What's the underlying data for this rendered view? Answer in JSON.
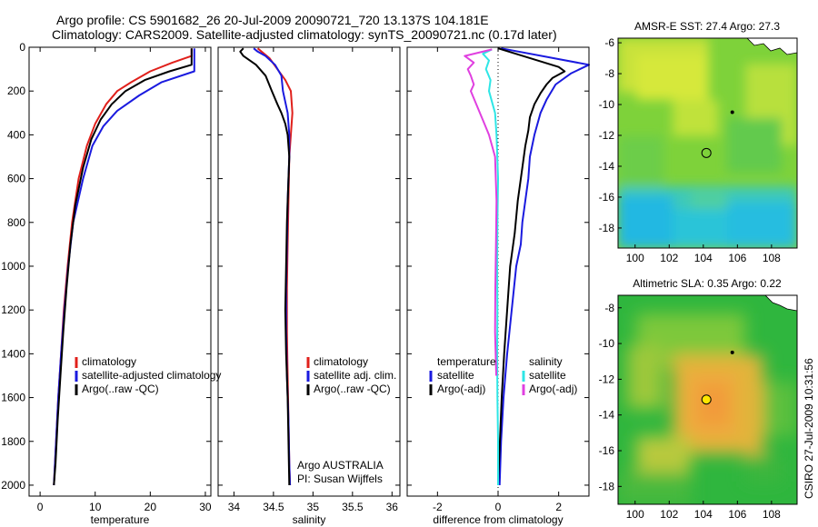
{
  "title": {
    "line1": "Argo profile: CS 5901682_26 20-Jul-2009 20090721_720 13.137S 104.181E",
    "line2": "Climatology: CARS2009. Satellite-adjusted climatology: synTS_20090721.nc (0.17d later)"
  },
  "side_text": "CSIRO 27-Jul-2009 10:31:56",
  "colors": {
    "red": "#e0201b",
    "blue": "#1a1adf",
    "black": "#000000",
    "cyan": "#2ee6e6",
    "magenta": "#e040e0"
  },
  "chart_data": [
    {
      "type": "line",
      "panel": "temperature",
      "xlabel": "temperature",
      "ylabel": "",
      "xlim": [
        -2,
        31
      ],
      "ylim": [
        2050,
        0
      ],
      "x_ticks": [
        0,
        10,
        20,
        30
      ],
      "x_tick_labels": [
        "0",
        "10",
        "20",
        "30"
      ],
      "y_ticks": [
        0,
        200,
        400,
        600,
        800,
        1000,
        1200,
        1400,
        1600,
        1800,
        2000
      ],
      "y_tick_labels": [
        "0",
        "200",
        "400",
        "600",
        "800",
        "1000",
        "1200",
        "1400",
        "1600",
        "1800",
        "2000"
      ],
      "legend": [
        "climatology",
        "satellite-adjusted climatology",
        "Argo(..raw -QC)"
      ],
      "series": [
        {
          "name": "climatology",
          "color": "red",
          "points": [
            [
              27.5,
              5
            ],
            [
              27.5,
              40
            ],
            [
              24,
              70
            ],
            [
              20,
              110
            ],
            [
              16.5,
              160
            ],
            [
              14,
              200
            ],
            [
              12,
              260
            ],
            [
              10,
              350
            ],
            [
              8.5,
              450
            ],
            [
              7,
              600
            ],
            [
              5.8,
              800
            ],
            [
              5,
              1000
            ],
            [
              4.3,
              1200
            ],
            [
              3.8,
              1400
            ],
            [
              3.3,
              1600
            ],
            [
              2.9,
              1800
            ],
            [
              2.5,
              2000
            ]
          ]
        },
        {
          "name": "satellite-adjusted climatology",
          "color": "blue",
          "points": [
            [
              28,
              5
            ],
            [
              28,
              110
            ],
            [
              22,
              160
            ],
            [
              18,
              220
            ],
            [
              14,
              290
            ],
            [
              11.5,
              360
            ],
            [
              9.5,
              450
            ],
            [
              7.8,
              600
            ],
            [
              6,
              800
            ],
            [
              5.1,
              1000
            ],
            [
              4.4,
              1200
            ],
            [
              3.8,
              1400
            ],
            [
              3.3,
              1600
            ],
            [
              2.9,
              1800
            ],
            [
              2.5,
              2000
            ]
          ]
        },
        {
          "name": "Argo(..raw -QC)",
          "color": "black",
          "points": [
            [
              27.5,
              5
            ],
            [
              27.5,
              80
            ],
            [
              23.5,
              110
            ],
            [
              19,
              150
            ],
            [
              15.5,
              200
            ],
            [
              13,
              260
            ],
            [
              11,
              330
            ],
            [
              9.3,
              420
            ],
            [
              7.8,
              550
            ],
            [
              6.4,
              720
            ],
            [
              5.5,
              900
            ],
            [
              4.8,
              1100
            ],
            [
              4.2,
              1300
            ],
            [
              3.7,
              1500
            ],
            [
              3.2,
              1700
            ],
            [
              2.8,
              1900
            ],
            [
              2.5,
              2000
            ]
          ]
        }
      ]
    },
    {
      "type": "line",
      "panel": "salinity",
      "xlabel": "salinity",
      "ylabel": "",
      "xlim": [
        33.8,
        36.1
      ],
      "ylim": [
        2050,
        0
      ],
      "x_ticks": [
        34,
        34.5,
        35,
        35.5,
        36
      ],
      "x_tick_labels": [
        "34",
        "34.5",
        "35",
        "35.5",
        "36"
      ],
      "legend": [
        "climatology",
        "satellite adj. clim.",
        "Argo(..raw -QC)"
      ],
      "annotation": [
        "Argo AUSTRALIA",
        "PI: Susan Wijffels"
      ],
      "series": [
        {
          "name": "climatology",
          "color": "red",
          "points": [
            [
              34.3,
              5
            ],
            [
              34.35,
              20
            ],
            [
              34.45,
              50
            ],
            [
              34.55,
              100
            ],
            [
              34.65,
              150
            ],
            [
              34.72,
              200
            ],
            [
              34.74,
              300
            ],
            [
              34.72,
              400
            ],
            [
              34.7,
              500
            ],
            [
              34.69,
              700
            ],
            [
              34.68,
              900
            ],
            [
              34.67,
              1100
            ],
            [
              34.67,
              1300
            ],
            [
              34.68,
              1500
            ],
            [
              34.69,
              1700
            ],
            [
              34.7,
              1900
            ],
            [
              34.71,
              2000
            ]
          ]
        },
        {
          "name": "satellite adj. clim.",
          "color": "blue",
          "points": [
            [
              34.25,
              5
            ],
            [
              34.3,
              20
            ],
            [
              34.4,
              40
            ],
            [
              34.52,
              80
            ],
            [
              34.6,
              130
            ],
            [
              34.62,
              200
            ],
            [
              34.68,
              300
            ],
            [
              34.7,
              400
            ],
            [
              34.7,
              500
            ],
            [
              34.68,
              700
            ],
            [
              34.67,
              900
            ],
            [
              34.66,
              1100
            ],
            [
              34.66,
              1300
            ],
            [
              34.67,
              1500
            ],
            [
              34.69,
              1700
            ],
            [
              34.7,
              1900
            ],
            [
              34.71,
              2000
            ]
          ]
        },
        {
          "name": "Argo(..raw -QC)",
          "color": "black",
          "points": [
            [
              34.12,
              5
            ],
            [
              34.08,
              20
            ],
            [
              34.12,
              40
            ],
            [
              34.28,
              80
            ],
            [
              34.4,
              130
            ],
            [
              34.48,
              200
            ],
            [
              34.55,
              260
            ],
            [
              34.6,
              300
            ],
            [
              34.65,
              350
            ],
            [
              34.68,
              400
            ],
            [
              34.7,
              500
            ],
            [
              34.69,
              600
            ],
            [
              34.67,
              800
            ],
            [
              34.66,
              1000
            ],
            [
              34.65,
              1200
            ],
            [
              34.66,
              1400
            ],
            [
              34.68,
              1600
            ],
            [
              34.69,
              1800
            ],
            [
              34.7,
              2000
            ]
          ]
        }
      ]
    },
    {
      "type": "line",
      "panel": "difference",
      "xlabel": "difference from climatology",
      "ylabel": "",
      "xlim": [
        -3,
        3
      ],
      "ylim": [
        2050,
        0
      ],
      "x_ticks": [
        -2,
        0,
        2
      ],
      "x_tick_labels": [
        "-2",
        "0",
        "2"
      ],
      "legend_left_title": "temperature",
      "legend_right_title": "salinity",
      "legend": [
        "satellite",
        "Argo(-adj)",
        "satellite",
        "Argo(-adj)"
      ],
      "series": [
        {
          "name": "satellite",
          "group": "temperature",
          "color": "blue",
          "points": [
            [
              0.1,
              5
            ],
            [
              3,
              80
            ],
            [
              2.4,
              120
            ],
            [
              1.9,
              170
            ],
            [
              1.6,
              240
            ],
            [
              1.4,
              300
            ],
            [
              1.2,
              400
            ],
            [
              1.05,
              500
            ],
            [
              1.0,
              600
            ],
            [
              0.9,
              700
            ],
            [
              0.8,
              800
            ],
            [
              0.75,
              900
            ],
            [
              0.6,
              1000
            ],
            [
              0.45,
              1200
            ],
            [
              0.3,
              1400
            ],
            [
              0.18,
              1600
            ],
            [
              0.1,
              1800
            ],
            [
              0.05,
              2000
            ]
          ]
        },
        {
          "name": "Argo(-adj)",
          "group": "temperature",
          "color": "black",
          "points": [
            [
              0,
              5
            ],
            [
              2,
              90
            ],
            [
              2.2,
              110
            ],
            [
              1.8,
              140
            ],
            [
              1.6,
              170
            ],
            [
              1.4,
              210
            ],
            [
              1.2,
              260
            ],
            [
              1.05,
              320
            ],
            [
              1.0,
              380
            ],
            [
              0.9,
              450
            ],
            [
              0.8,
              550
            ],
            [
              0.65,
              700
            ],
            [
              0.55,
              850
            ],
            [
              0.4,
              1000
            ],
            [
              0.3,
              1200
            ],
            [
              0.2,
              1400
            ],
            [
              0.12,
              1600
            ],
            [
              0.06,
              1800
            ],
            [
              0,
              2000
            ]
          ]
        },
        {
          "name": "satellite",
          "group": "salinity",
          "color": "cyan",
          "points": [
            [
              -0.2,
              10
            ],
            [
              -0.5,
              30
            ],
            [
              -0.3,
              60
            ],
            [
              -0.4,
              100
            ],
            [
              -0.25,
              150
            ],
            [
              -0.3,
              200
            ],
            [
              -0.1,
              300
            ],
            [
              -0.05,
              400
            ],
            [
              0,
              600
            ],
            [
              -0.02,
              800
            ],
            [
              -0.03,
              1000
            ],
            [
              -0.02,
              1200
            ],
            [
              -0.03,
              1400
            ],
            [
              -0.02,
              1600
            ],
            [
              0,
              1800
            ],
            [
              0,
              2000
            ]
          ]
        },
        {
          "name": "Argo(-adj)",
          "group": "salinity",
          "color": "magenta",
          "points": [
            [
              -0.2,
              10
            ],
            [
              -1.1,
              40
            ],
            [
              -0.8,
              70
            ],
            [
              -1.0,
              100
            ],
            [
              -0.9,
              130
            ],
            [
              -0.8,
              170
            ],
            [
              -0.9,
              200
            ],
            [
              -0.75,
              250
            ],
            [
              -0.6,
              300
            ],
            [
              -0.45,
              350
            ],
            [
              -0.3,
              400
            ],
            [
              -0.1,
              500
            ],
            [
              -0.05,
              700
            ],
            [
              -0.07,
              900
            ],
            [
              -0.09,
              1100
            ],
            [
              -0.1,
              1300
            ],
            [
              -0.06,
              1500
            ]
          ]
        }
      ]
    },
    {
      "type": "heatmap",
      "panel": "sst-map",
      "title": "AMSR-E SST: 27.4 Argo: 27.3",
      "xlim": [
        99,
        109.5
      ],
      "ylim": [
        -19.3,
        -5.7
      ],
      "x_ticks": [
        100,
        102,
        104,
        106,
        108
      ],
      "x_tick_labels": [
        "100",
        "102",
        "104",
        "106",
        "108"
      ],
      "y_ticks": [
        -6,
        -8,
        -10,
        -12,
        -14,
        -16,
        -18
      ],
      "y_tick_labels": [
        "-6",
        "-8",
        "-10",
        "-12",
        "-14",
        "-16",
        "-18"
      ],
      "argo_position": [
        104.181,
        -13.137
      ],
      "marker": [
        105.7,
        -10.5
      ]
    },
    {
      "type": "heatmap",
      "panel": "sla-map",
      "title": "Altimetric SLA: 0.35 Argo: 0.22",
      "xlim": [
        99,
        109.5
      ],
      "ylim": [
        -19,
        -7.3
      ],
      "x_ticks": [
        100,
        102,
        104,
        106,
        108
      ],
      "x_tick_labels": [
        "100",
        "102",
        "104",
        "106",
        "108"
      ],
      "y_ticks": [
        -8,
        -10,
        -12,
        -14,
        -16,
        -18
      ],
      "y_tick_labels": [
        "-8",
        "-10",
        "-12",
        "-14",
        "-16",
        "-18"
      ],
      "argo_position": [
        104.181,
        -13.137
      ],
      "marker": [
        105.7,
        -10.5
      ]
    }
  ]
}
